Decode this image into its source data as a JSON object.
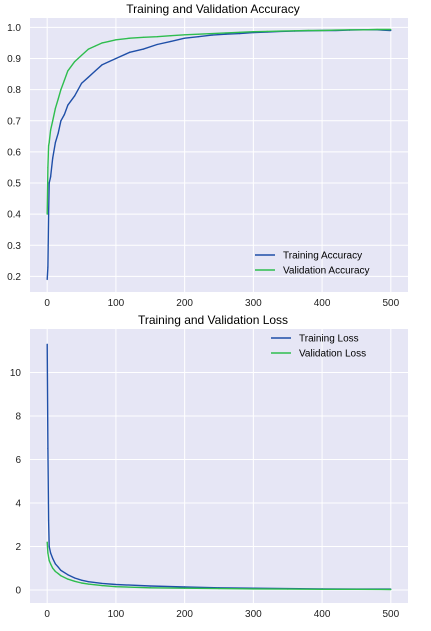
{
  "chart_data": [
    {
      "type": "line",
      "title": "Training and Validation Accuracy",
      "xlabel": "",
      "ylabel": "",
      "xlim": [
        -25,
        525
      ],
      "ylim": [
        0.15,
        1.03
      ],
      "xticks": [
        0,
        100,
        200,
        300,
        400,
        500
      ],
      "yticks": [
        0.2,
        0.3,
        0.4,
        0.5,
        0.6,
        0.7,
        0.8,
        0.9,
        1.0
      ],
      "ytick_labels": [
        "0.2",
        "0.3",
        "0.4",
        "0.5",
        "0.6",
        "0.7",
        "0.8",
        "0.9",
        "1.0"
      ],
      "grid": true,
      "legend_position": "lower-right",
      "series": [
        {
          "name": "Training Accuracy",
          "color": "#1f4fa8",
          "x": [
            0,
            1,
            2,
            3,
            5,
            8,
            12,
            16,
            20,
            25,
            30,
            40,
            50,
            60,
            70,
            80,
            90,
            100,
            120,
            140,
            160,
            180,
            200,
            220,
            240,
            260,
            280,
            300,
            320,
            340,
            360,
            380,
            400,
            420,
            440,
            460,
            480,
            500
          ],
          "y": [
            0.19,
            0.23,
            0.4,
            0.5,
            0.52,
            0.58,
            0.63,
            0.66,
            0.7,
            0.72,
            0.75,
            0.78,
            0.82,
            0.84,
            0.86,
            0.88,
            0.89,
            0.9,
            0.92,
            0.93,
            0.945,
            0.955,
            0.965,
            0.97,
            0.975,
            0.978,
            0.98,
            0.983,
            0.985,
            0.987,
            0.988,
            0.989,
            0.99,
            0.99,
            0.991,
            0.992,
            0.992,
            0.99
          ]
        },
        {
          "name": "Validation Accuracy",
          "color": "#2ebd4e",
          "x": [
            0,
            1,
            2,
            3,
            5,
            8,
            12,
            16,
            20,
            25,
            30,
            40,
            50,
            60,
            70,
            80,
            90,
            100,
            120,
            140,
            160,
            180,
            200,
            220,
            240,
            260,
            280,
            300,
            320,
            340,
            360,
            380,
            400,
            420,
            440,
            460,
            480,
            500
          ],
          "y": [
            0.4,
            0.55,
            0.62,
            0.63,
            0.67,
            0.7,
            0.74,
            0.77,
            0.8,
            0.83,
            0.86,
            0.89,
            0.91,
            0.93,
            0.94,
            0.95,
            0.955,
            0.96,
            0.965,
            0.968,
            0.97,
            0.973,
            0.976,
            0.978,
            0.98,
            0.982,
            0.984,
            0.986,
            0.987,
            0.988,
            0.989,
            0.99,
            0.99,
            0.991,
            0.992,
            0.992,
            0.993,
            0.993
          ]
        }
      ]
    },
    {
      "type": "line",
      "title": "Training and Validation Loss",
      "xlabel": "",
      "ylabel": "",
      "xlim": [
        -25,
        525
      ],
      "ylim": [
        -0.6,
        12.0
      ],
      "xticks": [
        0,
        100,
        200,
        300,
        400,
        500
      ],
      "yticks": [
        0,
        2,
        4,
        6,
        8,
        10
      ],
      "ytick_labels": [
        "0",
        "2",
        "4",
        "6",
        "8",
        "10"
      ],
      "grid": true,
      "legend_position": "upper-right",
      "series": [
        {
          "name": "Training Loss",
          "color": "#1f4fa8",
          "x": [
            0,
            1,
            2,
            3,
            5,
            8,
            12,
            16,
            20,
            30,
            40,
            50,
            60,
            80,
            100,
            150,
            200,
            250,
            300,
            350,
            400,
            450,
            500
          ],
          "y": [
            11.3,
            6.5,
            3.2,
            2.0,
            1.7,
            1.45,
            1.2,
            1.05,
            0.9,
            0.7,
            0.55,
            0.45,
            0.38,
            0.3,
            0.25,
            0.18,
            0.14,
            0.1,
            0.08,
            0.06,
            0.05,
            0.04,
            0.04
          ]
        },
        {
          "name": "Validation Loss",
          "color": "#2ebd4e",
          "x": [
            0,
            1,
            2,
            3,
            5,
            8,
            12,
            16,
            20,
            30,
            40,
            50,
            60,
            80,
            100,
            150,
            200,
            250,
            300,
            350,
            400,
            450,
            500
          ],
          "y": [
            2.2,
            1.7,
            1.5,
            1.35,
            1.2,
            1.0,
            0.85,
            0.75,
            0.65,
            0.5,
            0.4,
            0.32,
            0.27,
            0.2,
            0.15,
            0.1,
            0.08,
            0.06,
            0.05,
            0.04,
            0.03,
            0.03,
            0.02
          ]
        }
      ]
    }
  ]
}
